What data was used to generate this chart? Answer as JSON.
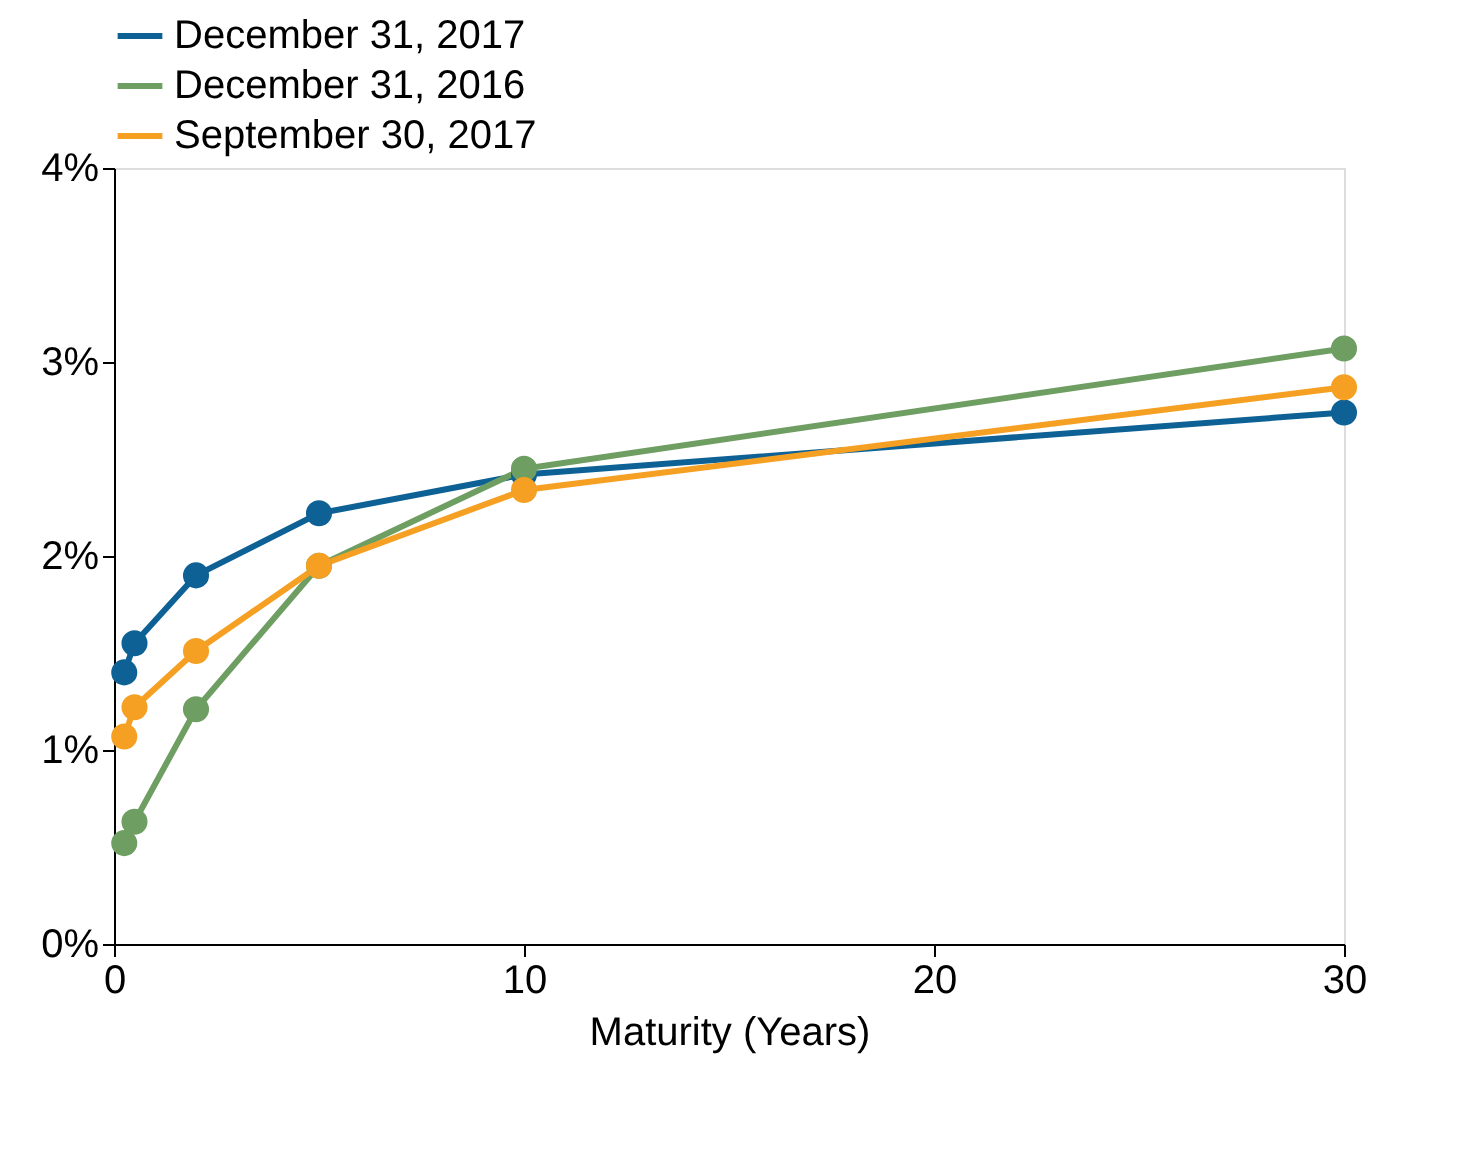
{
  "chart_data": {
    "type": "line",
    "xlabel": "Maturity (Years)",
    "x": [
      0.25,
      0.5,
      2,
      5,
      10,
      30
    ],
    "series": [
      {
        "name": "December 31, 2017",
        "color": "#0e6195",
        "values": [
          1.4,
          1.55,
          1.9,
          2.22,
          2.42,
          2.74
        ]
      },
      {
        "name": "December 31, 2016",
        "color": "#6e9e62",
        "values": [
          0.52,
          0.63,
          1.21,
          1.95,
          2.45,
          3.07
        ]
      },
      {
        "name": "September 30, 2017",
        "color": "#f5a023",
        "values": [
          1.07,
          1.22,
          1.51,
          1.95,
          2.34,
          2.87
        ]
      }
    ],
    "xlim": [
      0,
      30
    ],
    "xticks": [
      0,
      10,
      20,
      30
    ],
    "ylim": [
      0,
      4
    ],
    "yticks": [
      {
        "value": 0,
        "label": "0%"
      },
      {
        "value": 1,
        "label": "1%"
      },
      {
        "value": 2,
        "label": "2%"
      },
      {
        "value": 3,
        "label": "3%"
      },
      {
        "value": 4,
        "label": "4%"
      }
    ],
    "marker": "circle",
    "line_style": "solid",
    "legend": "top left",
    "grid": false
  }
}
